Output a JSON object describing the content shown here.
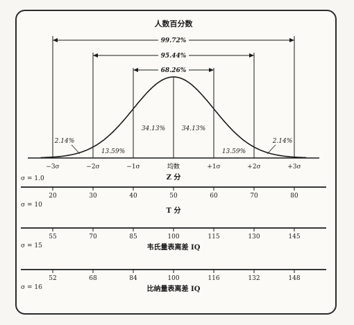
{
  "chart_data": {
    "type": "line",
    "title": "人数百分数",
    "curve": {
      "mean": 0,
      "sd": 1,
      "x_range": [
        -3.3,
        3.3
      ]
    },
    "spans": [
      {
        "label": "99.72%",
        "from": -3,
        "to": 3
      },
      {
        "label": "95.44%",
        "from": -2,
        "to": 2
      },
      {
        "label": "68.26%",
        "from": -1,
        "to": 1
      }
    ],
    "area_labels": [
      {
        "label": "2.14%",
        "x": -2.5
      },
      {
        "label": "13.59%",
        "x": -1.5
      },
      {
        "label": "34.13%",
        "x": -0.5
      },
      {
        "label": "34.13%",
        "x": 0.5
      },
      {
        "label": "13.59%",
        "x": 1.5
      },
      {
        "label": "2.14%",
        "x": 2.5
      }
    ],
    "z_ticks": [
      "−3σ",
      "−2σ",
      "−1σ",
      "均数",
      "+1σ",
      "+2σ",
      "+3σ"
    ],
    "scales": [
      {
        "name": "Z 分",
        "sigma": "σ = 1.0",
        "ticks": []
      },
      {
        "name": "T 分",
        "sigma": "σ = 10",
        "ticks": [
          "20",
          "30",
          "40",
          "50",
          "60",
          "70",
          "80"
        ]
      },
      {
        "name": "韦氏量表离差 IQ",
        "sigma": "σ = 15",
        "ticks": [
          "55",
          "70",
          "85",
          "100",
          "115",
          "130",
          "145"
        ]
      },
      {
        "name": "比纳量表离差 IQ",
        "sigma": "σ = 16",
        "ticks": [
          "52",
          "68",
          "84",
          "100",
          "116",
          "132",
          "148"
        ]
      }
    ]
  }
}
